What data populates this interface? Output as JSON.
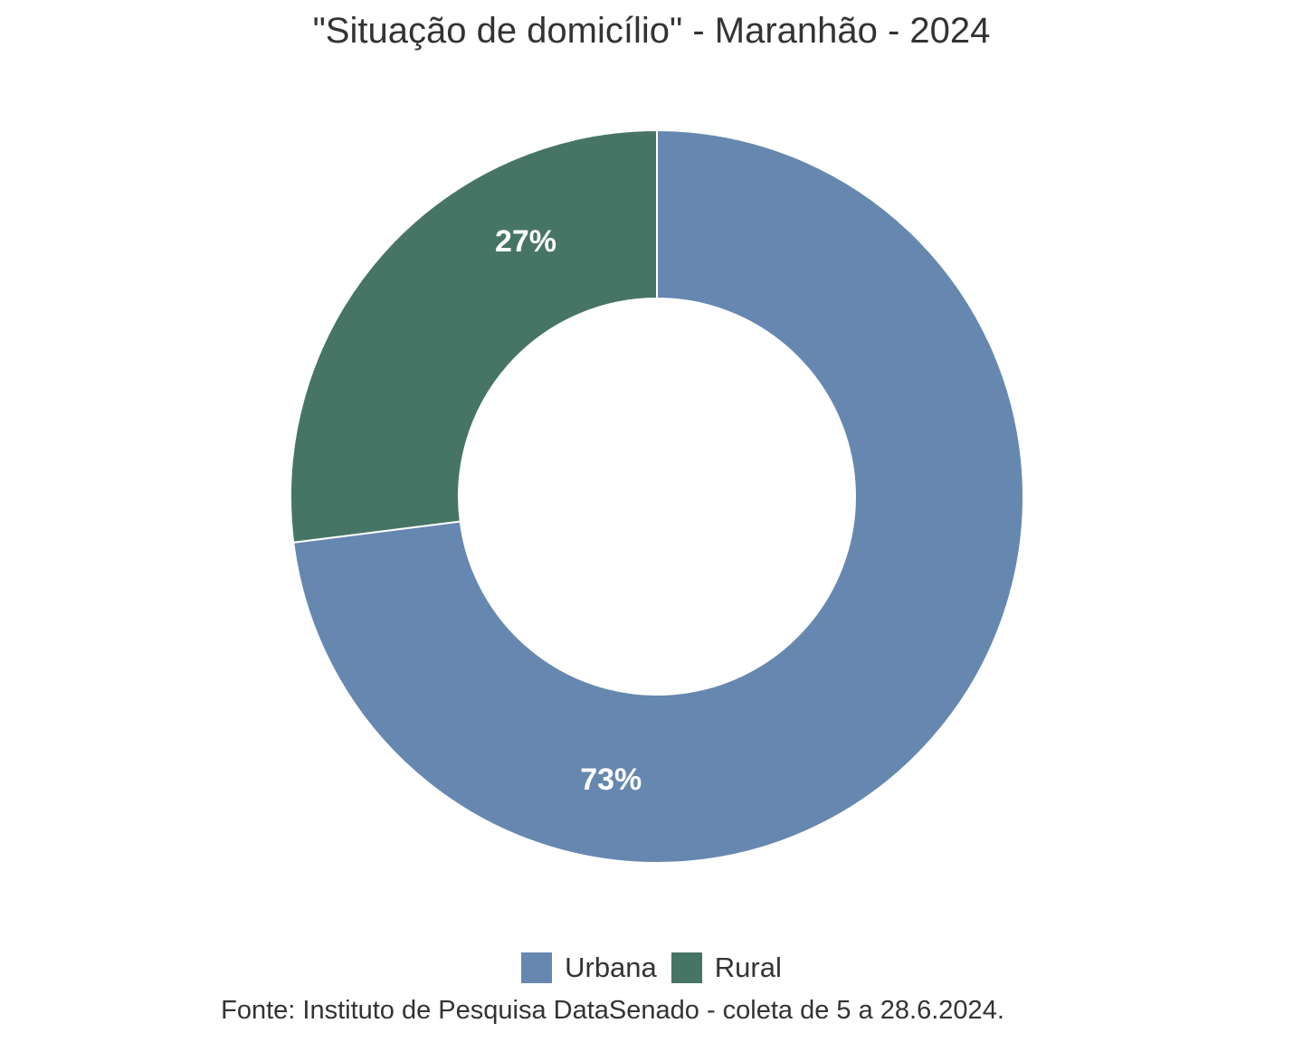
{
  "chart_data": {
    "type": "pie",
    "style": "donut",
    "title": "\"Situação de domicílio\" - Maranhão - 2024",
    "categories": [
      "Urbana",
      "Rural"
    ],
    "values": [
      73,
      27
    ],
    "labels": [
      "73%",
      "27%"
    ],
    "colors": [
      "#6688b0",
      "#467565"
    ],
    "legend": {
      "position": "bottom",
      "entries": [
        "Urbana",
        "Rural"
      ]
    },
    "caption": "Fonte: Instituto de Pesquisa DataSenado - coleta de 5 a 28.6.2024."
  }
}
